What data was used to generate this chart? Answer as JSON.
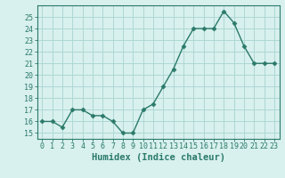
{
  "x": [
    0,
    1,
    2,
    3,
    4,
    5,
    6,
    7,
    8,
    9,
    10,
    11,
    12,
    13,
    14,
    15,
    16,
    17,
    18,
    19,
    20,
    21,
    22,
    23
  ],
  "y": [
    16,
    16,
    15.5,
    17,
    17,
    16.5,
    16.5,
    16,
    15,
    15,
    17,
    17.5,
    19,
    20.5,
    22.5,
    24,
    24,
    24,
    25.5,
    24.5,
    22.5,
    21,
    21,
    21
  ],
  "line_color": "#2a7a6a",
  "marker": "D",
  "marker_size": 2.5,
  "bg_color": "#d8f0ee",
  "grid_color": "#aed8d4",
  "xlabel": "Humidex (Indice chaleur)",
  "ylabel": "",
  "ylim": [
    14.5,
    26
  ],
  "xlim": [
    -0.5,
    23.5
  ],
  "yticks": [
    15,
    16,
    17,
    18,
    19,
    20,
    21,
    22,
    23,
    24,
    25
  ],
  "xticks": [
    0,
    1,
    2,
    3,
    4,
    5,
    6,
    7,
    8,
    9,
    10,
    11,
    12,
    13,
    14,
    15,
    16,
    17,
    18,
    19,
    20,
    21,
    22,
    23
  ],
  "tick_label_fontsize": 6,
  "xlabel_fontsize": 7.5,
  "tick_color": "#2a7a6a",
  "axis_color": "#2a7a6a",
  "line_width": 1.0
}
